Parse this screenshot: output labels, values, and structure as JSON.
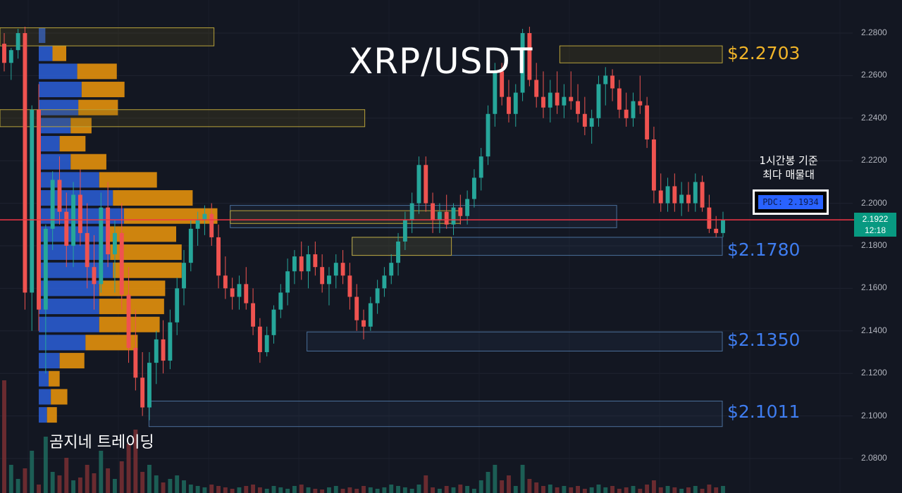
{
  "chart_data": {
    "type": "candlestick",
    "title": "XRP/USDT",
    "ylim": [
      2.07,
      2.284
    ],
    "y_ticks": [
      "2.2800",
      "2.2600",
      "2.2400",
      "2.2200",
      "2.2000",
      "2.1800",
      "2.1600",
      "2.1400",
      "2.1200",
      "2.1000",
      "2.0800"
    ],
    "current_price": "2.1922",
    "countdown": "12:18",
    "level_labels": [
      {
        "text": "$2.2703",
        "price": 2.2703,
        "color": "#f0b429"
      },
      {
        "text": "$2.1780",
        "price": 2.178,
        "color": "#3f7df0"
      },
      {
        "text": "$2.1350",
        "price": 2.135,
        "color": "#3f7df0"
      },
      {
        "text": "$2.1011",
        "price": 2.1011,
        "color": "#3f7df0"
      }
    ],
    "note_lines": [
      "1시간봉 기준",
      "최다 매물대"
    ],
    "pdc_label": "PDC: 2.1934",
    "brand": "곰지네 트레이딩",
    "colors": {
      "up": "#26a69a",
      "down": "#ef5350",
      "price_line": "#f23645"
    },
    "zones": [
      {
        "top": 2.2825,
        "bottom": 2.274,
        "x1": 0.0,
        "x2": 0.237,
        "color": "yellow"
      },
      {
        "top": 2.244,
        "bottom": 2.236,
        "x1": 0.0,
        "x2": 0.404,
        "color": "yellow"
      },
      {
        "top": 2.274,
        "bottom": 2.266,
        "x1": 0.62,
        "x2": 0.8,
        "color": "yellow"
      },
      {
        "top": 2.199,
        "bottom": 2.1885,
        "x1": 0.255,
        "x2": 0.683,
        "color": "blue"
      },
      {
        "top": 2.1965,
        "bottom": 2.1905,
        "x1": 0.255,
        "x2": 0.51,
        "color": "yellow"
      },
      {
        "top": 2.184,
        "bottom": 2.1755,
        "x1": 0.39,
        "x2": 0.8,
        "color": "blue"
      },
      {
        "top": 2.184,
        "bottom": 2.1755,
        "x1": 0.39,
        "x2": 0.5,
        "color": "yellow"
      },
      {
        "top": 2.1395,
        "bottom": 2.1305,
        "x1": 0.34,
        "x2": 0.8,
        "color": "blue"
      },
      {
        "top": 2.107,
        "bottom": 2.095,
        "x1": 0.165,
        "x2": 0.8,
        "color": "blue"
      }
    ],
    "volume_profile": [
      {
        "price": 2.279,
        "buy": 12,
        "sell": 0
      },
      {
        "price": 2.2705,
        "buy": 25,
        "sell": 25
      },
      {
        "price": 2.262,
        "buy": 70,
        "sell": 72
      },
      {
        "price": 2.2535,
        "buy": 78,
        "sell": 78
      },
      {
        "price": 2.245,
        "buy": 72,
        "sell": 72
      },
      {
        "price": 2.2365,
        "buy": 58,
        "sell": 38
      },
      {
        "price": 2.228,
        "buy": 38,
        "sell": 47
      },
      {
        "price": 2.2195,
        "buy": 58,
        "sell": 65
      },
      {
        "price": 2.211,
        "buy": 110,
        "sell": 105
      },
      {
        "price": 2.2025,
        "buy": 135,
        "sell": 145
      },
      {
        "price": 2.194,
        "buy": 155,
        "sell": 170
      },
      {
        "price": 2.1855,
        "buy": 125,
        "sell": 125
      },
      {
        "price": 2.177,
        "buy": 130,
        "sell": 130
      },
      {
        "price": 2.1685,
        "buy": 135,
        "sell": 125
      },
      {
        "price": 2.16,
        "buy": 110,
        "sell": 120
      },
      {
        "price": 2.1515,
        "buy": 110,
        "sell": 118
      },
      {
        "price": 2.143,
        "buy": 110,
        "sell": 110
      },
      {
        "price": 2.1345,
        "buy": 85,
        "sell": 95
      },
      {
        "price": 2.126,
        "buy": 38,
        "sell": 45
      },
      {
        "price": 2.1175,
        "buy": 18,
        "sell": 20
      },
      {
        "price": 2.109,
        "buy": 22,
        "sell": 30
      },
      {
        "price": 2.1005,
        "buy": 15,
        "sell": 18
      }
    ],
    "candles": [
      [
        2.275,
        2.28,
        2.262,
        2.266
      ],
      [
        2.266,
        2.273,
        2.258,
        2.272
      ],
      [
        2.272,
        2.282,
        2.268,
        2.28
      ],
      [
        2.28,
        2.283,
        2.15,
        2.158
      ],
      [
        2.158,
        2.246,
        2.14,
        2.244
      ],
      [
        2.244,
        2.256,
        2.14,
        2.15
      ],
      [
        2.15,
        2.19,
        2.12,
        2.188
      ],
      [
        2.188,
        2.215,
        2.178,
        2.211
      ],
      [
        2.211,
        2.222,
        2.19,
        2.196
      ],
      [
        2.196,
        2.205,
        2.17,
        2.18
      ],
      [
        2.18,
        2.21,
        2.17,
        2.204
      ],
      [
        2.204,
        2.216,
        2.18,
        2.186
      ],
      [
        2.186,
        2.2,
        2.16,
        2.17
      ],
      [
        2.17,
        2.185,
        2.15,
        2.162
      ],
      [
        2.162,
        2.205,
        2.158,
        2.198
      ],
      [
        2.198,
        2.21,
        2.17,
        2.176
      ],
      [
        2.176,
        2.192,
        2.158,
        2.186
      ],
      [
        2.186,
        2.2,
        2.15,
        2.157
      ],
      [
        2.157,
        2.17,
        2.125,
        2.132
      ],
      [
        2.132,
        2.15,
        2.112,
        2.118
      ],
      [
        2.118,
        2.13,
        2.1,
        2.104
      ],
      [
        2.104,
        2.13,
        2.098,
        2.125
      ],
      [
        2.125,
        2.14,
        2.115,
        2.136
      ],
      [
        2.136,
        2.145,
        2.12,
        2.126
      ],
      [
        2.126,
        2.15,
        2.122,
        2.144
      ],
      [
        2.144,
        2.165,
        2.138,
        2.16
      ],
      [
        2.16,
        2.178,
        2.152,
        2.172
      ],
      [
        2.172,
        2.192,
        2.168,
        2.188
      ],
      [
        2.188,
        2.196,
        2.18,
        2.192
      ],
      [
        2.192,
        2.199,
        2.185,
        2.195
      ],
      [
        2.195,
        2.2,
        2.18,
        2.184
      ],
      [
        2.184,
        2.19,
        2.16,
        2.166
      ],
      [
        2.166,
        2.175,
        2.155,
        2.16
      ],
      [
        2.16,
        2.165,
        2.15,
        2.156
      ],
      [
        2.156,
        2.166,
        2.15,
        2.162
      ],
      [
        2.162,
        2.17,
        2.15,
        2.153
      ],
      [
        2.153,
        2.16,
        2.138,
        2.142
      ],
      [
        2.142,
        2.146,
        2.125,
        2.13
      ],
      [
        2.13,
        2.142,
        2.128,
        2.138
      ],
      [
        2.138,
        2.152,
        2.134,
        2.15
      ],
      [
        2.15,
        2.162,
        2.146,
        2.158
      ],
      [
        2.158,
        2.174,
        2.152,
        2.168
      ],
      [
        2.168,
        2.178,
        2.162,
        2.175
      ],
      [
        2.175,
        2.182,
        2.164,
        2.168
      ],
      [
        2.168,
        2.18,
        2.16,
        2.176
      ],
      [
        2.176,
        2.182,
        2.166,
        2.17
      ],
      [
        2.17,
        2.176,
        2.158,
        2.162
      ],
      [
        2.162,
        2.17,
        2.152,
        2.166
      ],
      [
        2.166,
        2.176,
        2.16,
        2.172
      ],
      [
        2.172,
        2.178,
        2.162,
        2.166
      ],
      [
        2.166,
        2.172,
        2.15,
        2.156
      ],
      [
        2.156,
        2.162,
        2.14,
        2.145
      ],
      [
        2.145,
        2.15,
        2.136,
        2.142
      ],
      [
        2.142,
        2.156,
        2.14,
        2.153
      ],
      [
        2.153,
        2.164,
        2.148,
        2.16
      ],
      [
        2.16,
        2.17,
        2.156,
        2.166
      ],
      [
        2.166,
        2.176,
        2.162,
        2.172
      ],
      [
        2.172,
        2.186,
        2.166,
        2.182
      ],
      [
        2.182,
        2.196,
        2.178,
        2.192
      ],
      [
        2.192,
        2.205,
        2.186,
        2.2
      ],
      [
        2.2,
        2.222,
        2.195,
        2.218
      ],
      [
        2.218,
        2.222,
        2.196,
        2.2
      ],
      [
        2.2,
        2.205,
        2.186,
        2.192
      ],
      [
        2.192,
        2.2,
        2.186,
        2.196
      ],
      [
        2.196,
        2.204,
        2.188,
        2.19
      ],
      [
        2.19,
        2.2,
        2.185,
        2.198
      ],
      [
        2.198,
        2.204,
        2.19,
        2.194
      ],
      [
        2.194,
        2.206,
        2.19,
        2.202
      ],
      [
        2.202,
        2.216,
        2.198,
        2.212
      ],
      [
        2.212,
        2.226,
        2.206,
        2.222
      ],
      [
        2.222,
        2.246,
        2.218,
        2.242
      ],
      [
        2.242,
        2.266,
        2.236,
        2.262
      ],
      [
        2.262,
        2.266,
        2.246,
        2.25
      ],
      [
        2.25,
        2.258,
        2.238,
        2.242
      ],
      [
        2.242,
        2.256,
        2.236,
        2.252
      ],
      [
        2.252,
        2.282,
        2.248,
        2.28
      ],
      [
        2.28,
        2.283,
        2.255,
        2.258
      ],
      [
        2.258,
        2.266,
        2.245,
        2.25
      ],
      [
        2.25,
        2.262,
        2.24,
        2.245
      ],
      [
        2.245,
        2.258,
        2.238,
        2.252
      ],
      [
        2.252,
        2.262,
        2.242,
        2.246
      ],
      [
        2.246,
        2.256,
        2.24,
        2.25
      ],
      [
        2.25,
        2.262,
        2.244,
        2.248
      ],
      [
        2.248,
        2.256,
        2.238,
        2.242
      ],
      [
        2.242,
        2.25,
        2.232,
        2.236
      ],
      [
        2.236,
        2.244,
        2.228,
        2.24
      ],
      [
        2.24,
        2.26,
        2.236,
        2.256
      ],
      [
        2.256,
        2.264,
        2.246,
        2.26
      ],
      [
        2.26,
        2.263,
        2.248,
        2.254
      ],
      [
        2.254,
        2.258,
        2.24,
        2.244
      ],
      [
        2.244,
        2.252,
        2.236,
        2.24
      ],
      [
        2.24,
        2.252,
        2.236,
        2.248
      ],
      [
        2.248,
        2.26,
        2.242,
        2.246
      ],
      [
        2.246,
        2.25,
        2.226,
        2.23
      ],
      [
        2.23,
        2.236,
        2.2,
        2.206
      ],
      [
        2.206,
        2.214,
        2.196,
        2.2
      ],
      [
        2.2,
        2.212,
        2.196,
        2.208
      ],
      [
        2.208,
        2.214,
        2.196,
        2.2
      ],
      [
        2.2,
        2.21,
        2.194,
        2.204
      ],
      [
        2.204,
        2.21,
        2.196,
        2.2
      ],
      [
        2.2,
        2.214,
        2.196,
        2.21
      ],
      [
        2.21,
        2.213,
        2.196,
        2.198
      ],
      [
        2.198,
        2.204,
        2.186,
        2.188
      ],
      [
        2.188,
        2.194,
        2.184,
        2.186
      ],
      [
        2.186,
        2.196,
        2.184,
        2.192
      ]
    ]
  }
}
